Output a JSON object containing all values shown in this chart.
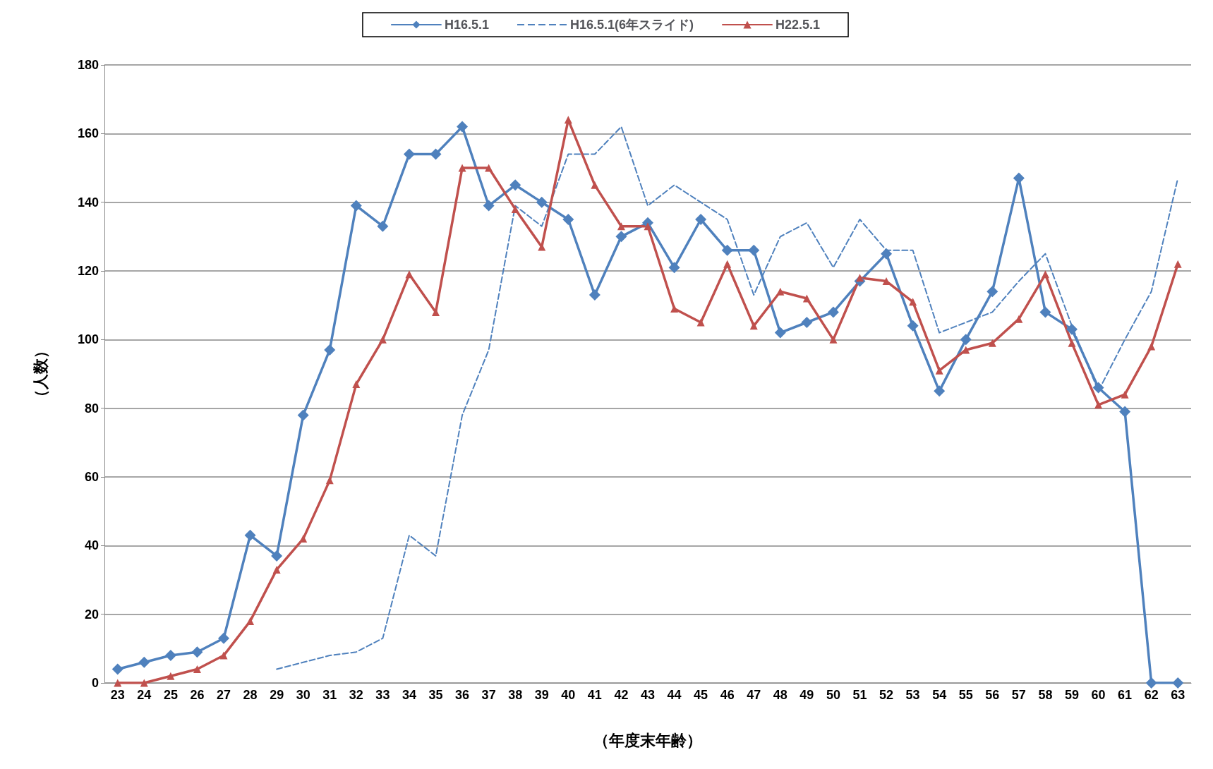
{
  "chart_data": {
    "type": "line",
    "xlabel": "（年度末年齢）",
    "ylabel": "（人数）",
    "categories": [
      "23",
      "24",
      "25",
      "26",
      "27",
      "28",
      "29",
      "30",
      "31",
      "32",
      "33",
      "34",
      "35",
      "36",
      "37",
      "38",
      "39",
      "40",
      "41",
      "42",
      "43",
      "44",
      "45",
      "46",
      "47",
      "48",
      "49",
      "50",
      "51",
      "52",
      "53",
      "54",
      "55",
      "56",
      "57",
      "58",
      "59",
      "60",
      "61",
      "62",
      "63"
    ],
    "series": [
      {
        "name": "H16.5.1",
        "color": "#4f81bd",
        "marker": "diamond",
        "line_style": "solid",
        "values": [
          4,
          6,
          8,
          9,
          13,
          43,
          37,
          78,
          97,
          139,
          133,
          154,
          154,
          162,
          139,
          145,
          140,
          135,
          113,
          130,
          134,
          121,
          135,
          126,
          126,
          102,
          105,
          108,
          117,
          125,
          104,
          85,
          100,
          114,
          147,
          108,
          103,
          86,
          79,
          0,
          0
        ]
      },
      {
        "name": "H16.5.1(6年スライド)",
        "color": "#4f81bd",
        "marker": "none",
        "line_style": "dashed",
        "values": [
          null,
          null,
          null,
          null,
          null,
          null,
          4,
          6,
          8,
          9,
          13,
          43,
          37,
          78,
          97,
          139,
          133,
          154,
          154,
          162,
          139,
          145,
          140,
          135,
          113,
          130,
          134,
          121,
          135,
          126,
          126,
          102,
          105,
          108,
          117,
          125,
          104,
          85,
          100,
          114,
          147
        ]
      },
      {
        "name": "H22.5.1",
        "color": "#c0504d",
        "marker": "triangle",
        "line_style": "solid",
        "values": [
          0,
          0,
          2,
          4,
          8,
          18,
          33,
          42,
          59,
          87,
          100,
          119,
          108,
          150,
          150,
          138,
          127,
          164,
          145,
          133,
          133,
          109,
          105,
          122,
          104,
          114,
          112,
          100,
          118,
          117,
          111,
          91,
          97,
          99,
          106,
          119,
          99,
          81,
          84,
          98,
          122
        ]
      }
    ],
    "ylim": [
      0,
      180
    ],
    "yticks": [
      0,
      20,
      40,
      60,
      80,
      100,
      120,
      140,
      160,
      180
    ],
    "grid": "y",
    "legend": "top"
  }
}
